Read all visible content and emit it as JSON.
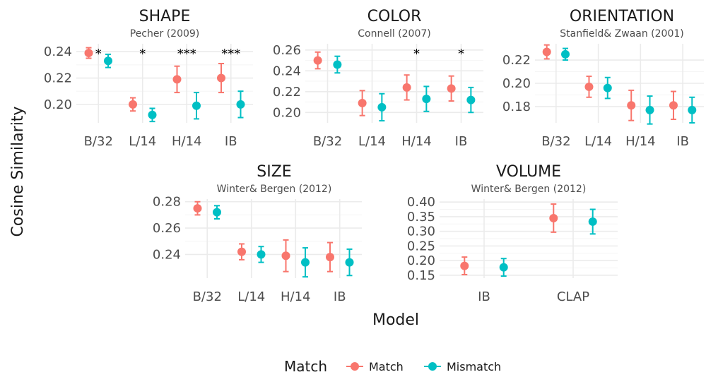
{
  "colors": {
    "match": "#F8766D",
    "mismatch": "#00BFC4",
    "grid_major": "#ebebeb",
    "grid_minor": "#f5f5f5"
  },
  "ylabel": "Cosine Similarity",
  "xlabel": "Model",
  "legend": {
    "title": "Match",
    "items": [
      "Match",
      "Mismatch"
    ],
    "placement": "bottom"
  },
  "chart_data": [
    {
      "type": "scatter",
      "title": "SHAPE",
      "subtitle": "Pecher (2009)",
      "categories": [
        "B/32",
        "L/14",
        "H/14",
        "IB"
      ],
      "yticks": [
        0.2,
        0.22,
        0.24
      ],
      "ylim": [
        0.186,
        0.246
      ],
      "series": [
        {
          "name": "Match",
          "values": [
            0.239,
            0.2,
            0.219,
            0.22
          ],
          "err": [
            0.004,
            0.005,
            0.01,
            0.011
          ]
        },
        {
          "name": "Mismatch",
          "values": [
            0.233,
            0.192,
            0.199,
            0.2
          ],
          "err": [
            0.005,
            0.005,
            0.01,
            0.01
          ]
        }
      ],
      "annotations": [
        "*",
        "*",
        "***",
        "***"
      ]
    },
    {
      "type": "scatter",
      "title": "COLOR",
      "subtitle": "Connell (2007)",
      "categories": [
        "B/32",
        "L/14",
        "H/14",
        "IB"
      ],
      "yticks": [
        0.2,
        0.22,
        0.24,
        0.26
      ],
      "ylim": [
        0.19,
        0.266
      ],
      "series": [
        {
          "name": "Match",
          "values": [
            0.25,
            0.209,
            0.224,
            0.223
          ],
          "err": [
            0.008,
            0.012,
            0.012,
            0.012
          ]
        },
        {
          "name": "Mismatch",
          "values": [
            0.246,
            0.205,
            0.213,
            0.212
          ],
          "err": [
            0.008,
            0.013,
            0.012,
            0.012
          ]
        }
      ],
      "annotations": [
        "",
        "",
        "*",
        "*"
      ]
    },
    {
      "type": "scatter",
      "title": "ORIENTATION",
      "subtitle": "Stanfield& Zwaan (2001)",
      "categories": [
        "B/32",
        "L/14",
        "H/14",
        "IB"
      ],
      "yticks": [
        0.18,
        0.2,
        0.22
      ],
      "ylim": [
        0.166,
        0.234
      ],
      "series": [
        {
          "name": "Match",
          "values": [
            0.227,
            0.197,
            0.181,
            0.181
          ],
          "err": [
            0.006,
            0.009,
            0.013,
            0.012
          ]
        },
        {
          "name": "Mismatch",
          "values": [
            0.225,
            0.196,
            0.177,
            0.177
          ],
          "err": [
            0.005,
            0.009,
            0.012,
            0.011
          ]
        }
      ],
      "annotations": [
        "",
        "",
        "",
        ""
      ]
    },
    {
      "type": "scatter",
      "title": "SIZE",
      "subtitle": "Winter& Bergen (2012)",
      "categories": [
        "B/32",
        "L/14",
        "H/14",
        "IB"
      ],
      "yticks": [
        0.24,
        0.26,
        0.28
      ],
      "ylim": [
        0.222,
        0.282
      ],
      "series": [
        {
          "name": "Match",
          "values": [
            0.275,
            0.242,
            0.239,
            0.238
          ],
          "err": [
            0.005,
            0.006,
            0.012,
            0.011
          ]
        },
        {
          "name": "Mismatch",
          "values": [
            0.272,
            0.24,
            0.234,
            0.234
          ],
          "err": [
            0.005,
            0.006,
            0.011,
            0.01
          ]
        }
      ],
      "annotations": [
        "",
        "",
        "",
        ""
      ]
    },
    {
      "type": "scatter",
      "title": "VOLUME",
      "subtitle": "Winter& Bergen (2012)",
      "categories": [
        "IB",
        "CLAP"
      ],
      "yticks": [
        0.15,
        0.2,
        0.25,
        0.3,
        0.35,
        0.4
      ],
      "ylim": [
        0.14,
        0.41
      ],
      "series": [
        {
          "name": "Match",
          "values": [
            0.182,
            0.345
          ],
          "err": [
            0.03,
            0.048
          ]
        },
        {
          "name": "Mismatch",
          "values": [
            0.177,
            0.333
          ],
          "err": [
            0.03,
            0.042
          ]
        }
      ],
      "annotations": [
        "",
        ""
      ]
    }
  ]
}
